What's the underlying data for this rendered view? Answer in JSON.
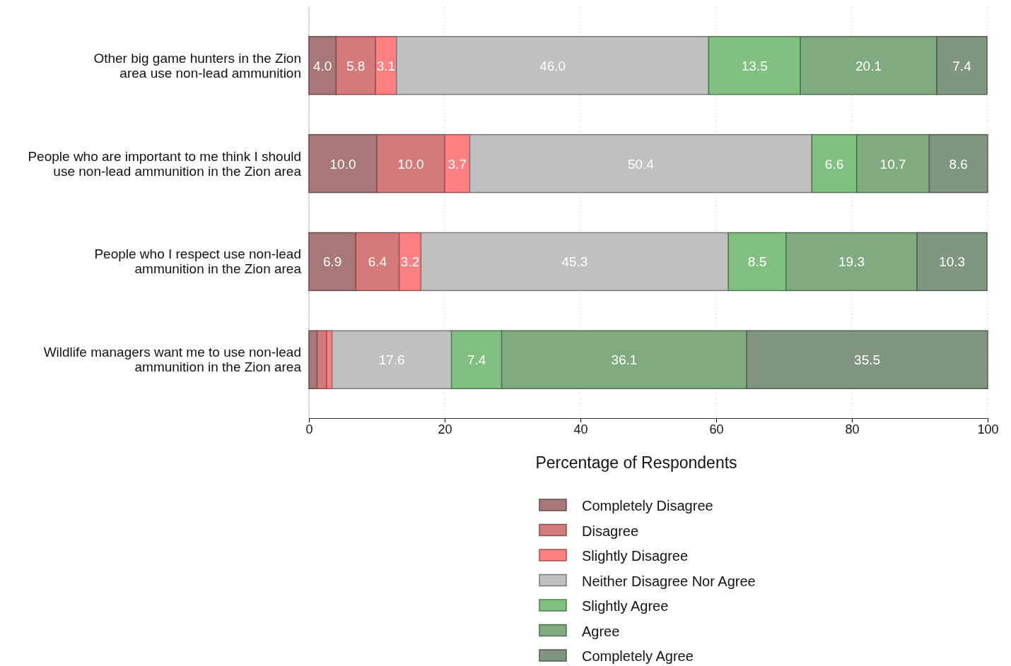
{
  "chart_data": {
    "type": "bar",
    "orientation": "horizontal",
    "stacked": true,
    "categories": [
      "Other big game hunters in the Zion area use non-lead ammunition",
      "People who are important to me think I should use non-lead ammunition in the Zion area",
      "People who I respect use non-lead ammunition in the Zion area",
      "Wildlife managers want me to use non-lead ammunition in the Zion area"
    ],
    "series": [
      {
        "name": "Completely Disagree",
        "color": "#a87878",
        "values": [
          4.0,
          10.0,
          6.9,
          1.2
        ],
        "value_labels": [
          "4.0",
          "10.0",
          "6.9",
          null
        ]
      },
      {
        "name": "Disagree",
        "color": "#d47a7a",
        "values": [
          5.8,
          10.0,
          6.4,
          1.4
        ],
        "value_labels": [
          "5.8",
          "10.0",
          "6.4",
          null
        ]
      },
      {
        "name": "Slightly Disagree",
        "color": "#ff8080",
        "values": [
          3.1,
          3.7,
          3.2,
          0.8
        ],
        "value_labels": [
          "3.1",
          "3.7",
          "3.2",
          null
        ]
      },
      {
        "name": "Neither Disagree Nor Agree",
        "color": "#c0c0c0",
        "values": [
          46.0,
          50.4,
          45.3,
          17.6
        ],
        "value_labels": [
          "46.0",
          "50.4",
          "45.3",
          "17.6"
        ]
      },
      {
        "name": "Slightly Agree",
        "color": "#80c080",
        "values": [
          13.5,
          6.6,
          8.5,
          7.4
        ],
        "value_labels": [
          "13.5",
          "6.6",
          "8.5",
          "7.4"
        ]
      },
      {
        "name": "Agree",
        "color": "#80ab80",
        "values": [
          20.1,
          10.7,
          19.3,
          36.1
        ],
        "value_labels": [
          "20.1",
          "10.7",
          "19.3",
          "36.1"
        ]
      },
      {
        "name": "Completely Agree",
        "color": "#809680",
        "values": [
          7.4,
          8.6,
          10.3,
          35.5
        ],
        "value_labels": [
          "7.4",
          "8.6",
          "10.3",
          "35.5"
        ]
      }
    ],
    "xlim": [
      0,
      100
    ],
    "xticks": [
      0,
      20,
      40,
      60,
      80,
      100
    ],
    "xlabel": "Percentage of Respondents",
    "grid": "x",
    "legend": "bottom"
  }
}
